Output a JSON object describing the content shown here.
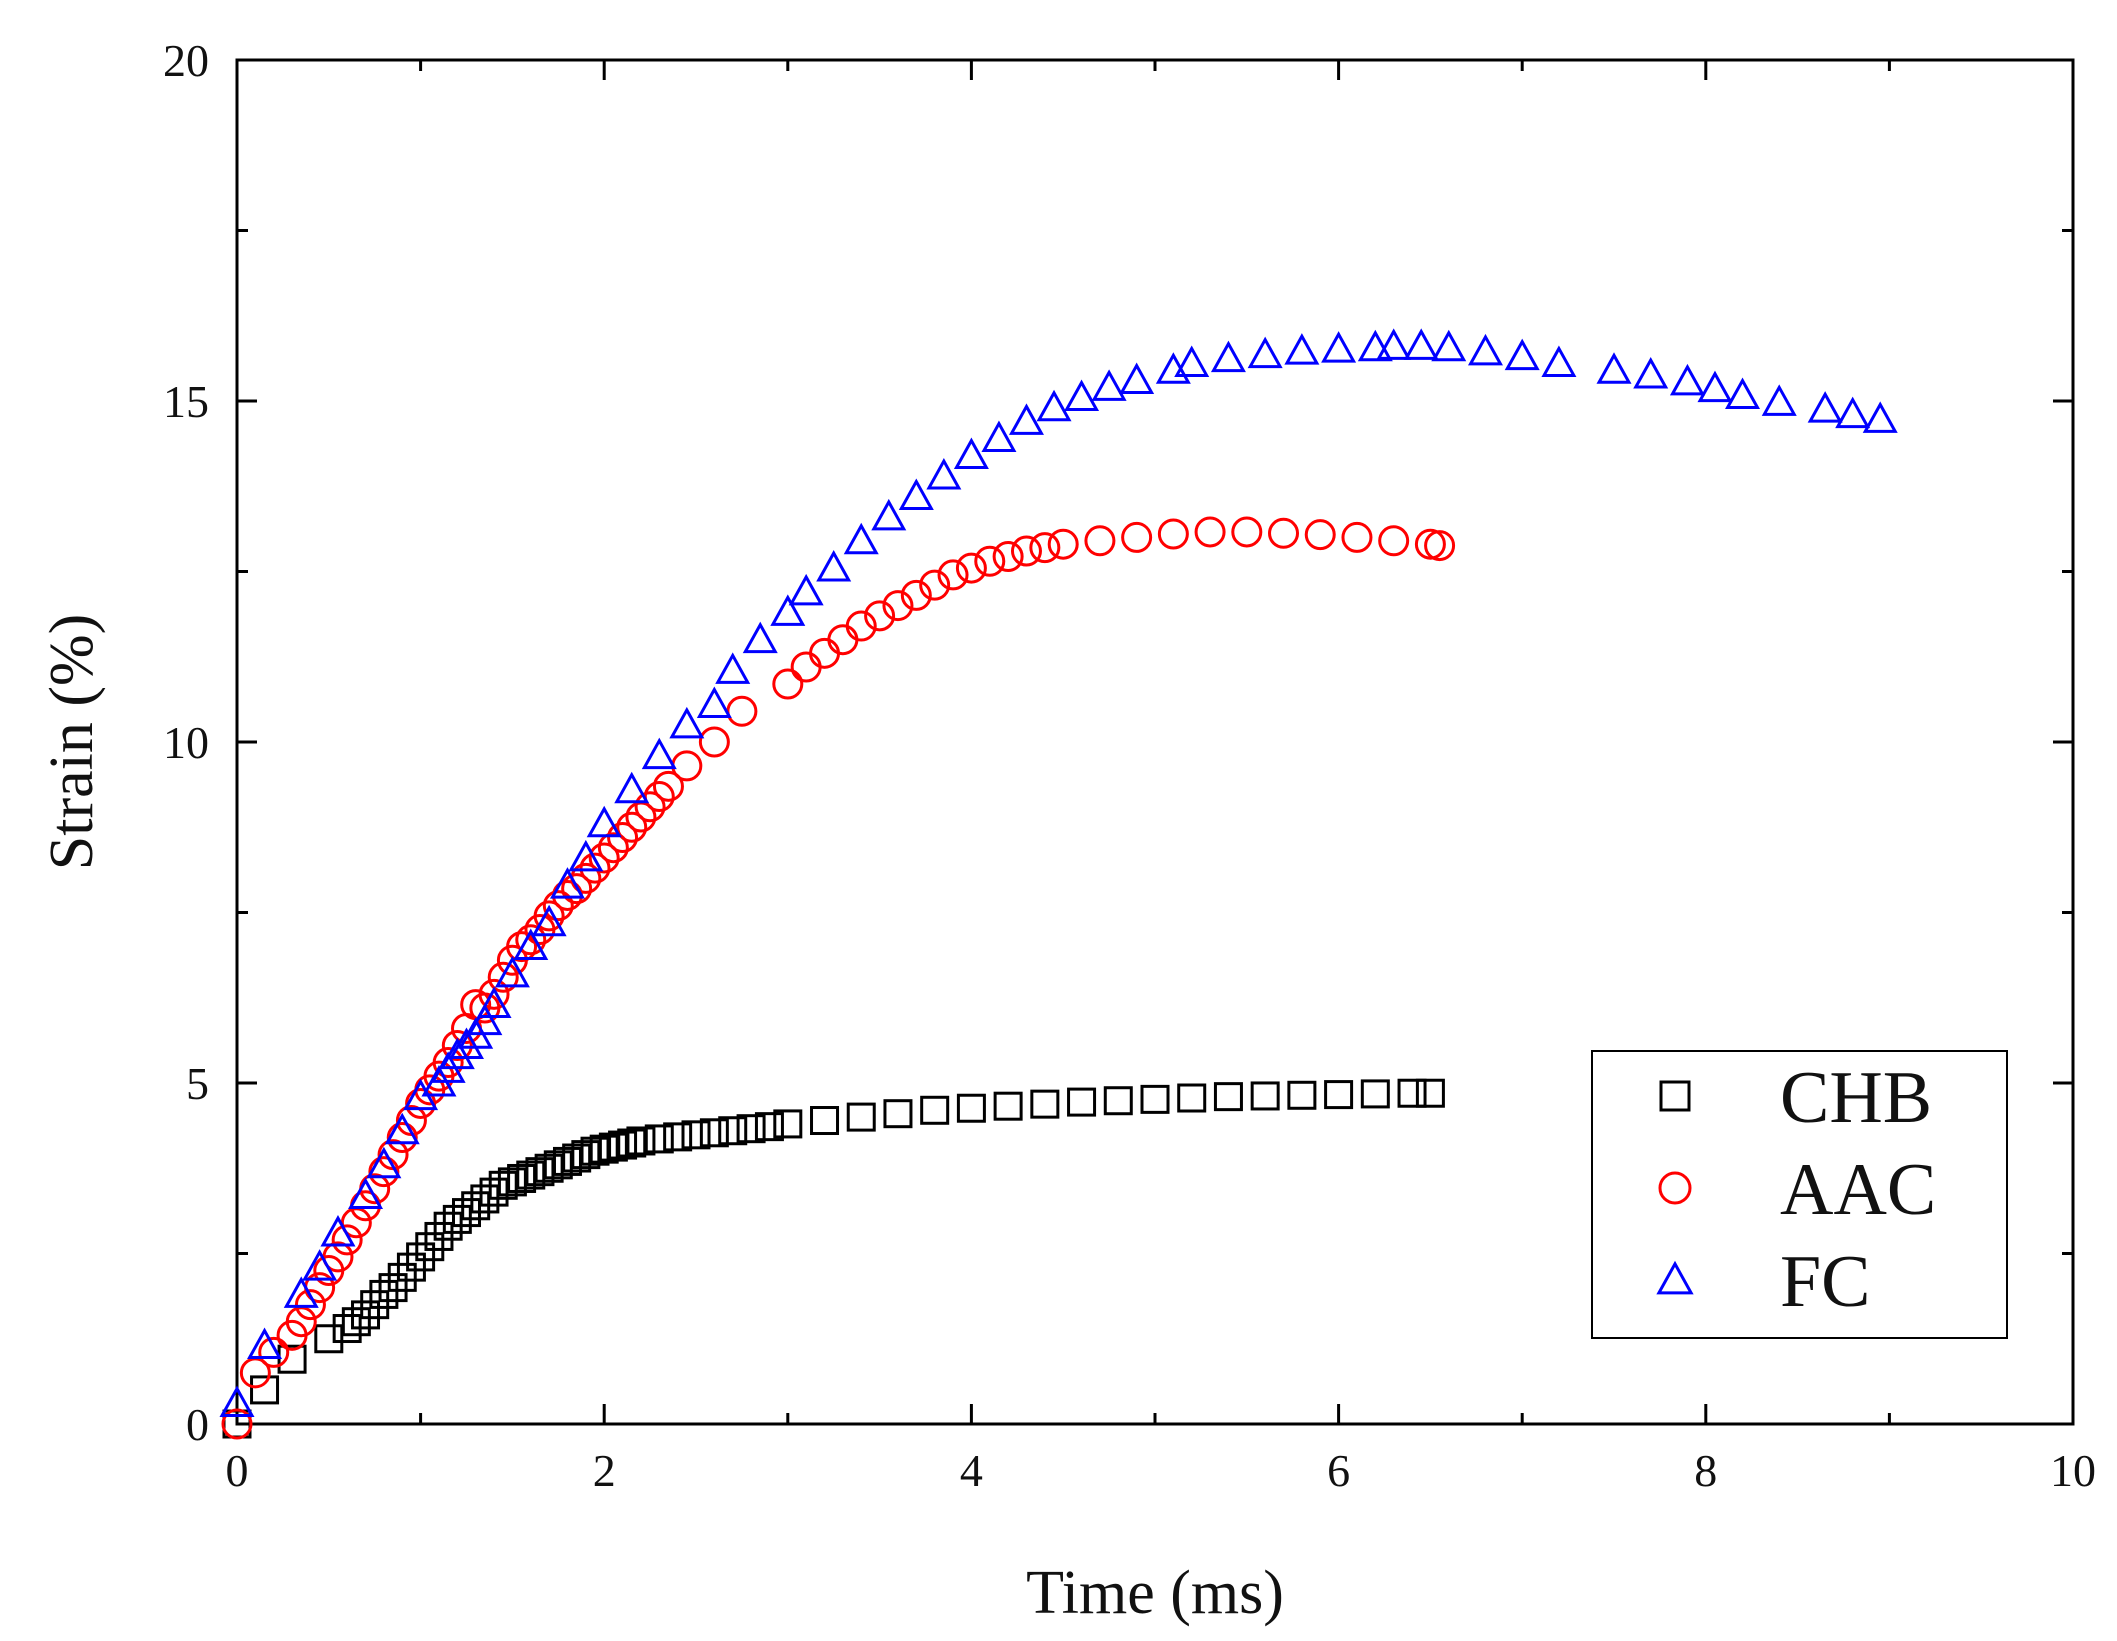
{
  "chart_data": {
    "type": "scatter",
    "title": "",
    "xlabel": "Time (ms)",
    "ylabel": "Strain (%)",
    "xlim": [
      0,
      10
    ],
    "ylim": [
      0,
      20
    ],
    "xticks": [
      0,
      2,
      4,
      6,
      8,
      10
    ],
    "xtick_labels": [
      "0",
      "2",
      "4",
      "6",
      "8",
      "10"
    ],
    "yticks": [
      0,
      5,
      10,
      15,
      20
    ],
    "ytick_labels": [
      "0",
      "5",
      "10",
      "15",
      "20"
    ],
    "grid": false,
    "legend_position": "bottom-right",
    "series": [
      {
        "name": "CHB",
        "marker": "square",
        "color": "#000000",
        "x": [
          0.0,
          0.15,
          0.3,
          0.5,
          0.6,
          0.65,
          0.7,
          0.75,
          0.8,
          0.85,
          0.9,
          0.95,
          1.0,
          1.05,
          1.1,
          1.15,
          1.2,
          1.25,
          1.3,
          1.35,
          1.4,
          1.45,
          1.5,
          1.55,
          1.6,
          1.65,
          1.7,
          1.75,
          1.8,
          1.85,
          1.9,
          1.95,
          2.0,
          2.05,
          2.1,
          2.15,
          2.2,
          2.3,
          2.4,
          2.5,
          2.6,
          2.7,
          2.8,
          2.9,
          3.0,
          3.2,
          3.4,
          3.6,
          3.8,
          4.0,
          4.2,
          4.4,
          4.6,
          4.8,
          5.0,
          5.2,
          5.4,
          5.6,
          5.8,
          6.0,
          6.2,
          6.4,
          6.5
        ],
        "y": [
          0.0,
          0.5,
          0.95,
          1.25,
          1.4,
          1.5,
          1.6,
          1.75,
          1.9,
          2.0,
          2.15,
          2.3,
          2.45,
          2.6,
          2.75,
          2.9,
          3.0,
          3.1,
          3.2,
          3.3,
          3.4,
          3.5,
          3.55,
          3.6,
          3.65,
          3.7,
          3.75,
          3.8,
          3.85,
          3.9,
          3.95,
          4.0,
          4.03,
          4.06,
          4.09,
          4.12,
          4.15,
          4.18,
          4.21,
          4.24,
          4.27,
          4.3,
          4.33,
          4.36,
          4.4,
          4.45,
          4.5,
          4.55,
          4.6,
          4.63,
          4.66,
          4.69,
          4.72,
          4.74,
          4.76,
          4.78,
          4.8,
          4.81,
          4.82,
          4.83,
          4.84,
          4.85,
          4.85
        ]
      },
      {
        "name": "AAC",
        "marker": "circle",
        "color": "#ff0000",
        "x": [
          0.0,
          0.1,
          0.2,
          0.3,
          0.35,
          0.4,
          0.45,
          0.5,
          0.55,
          0.6,
          0.65,
          0.7,
          0.75,
          0.8,
          0.85,
          0.9,
          0.95,
          1.0,
          1.05,
          1.1,
          1.15,
          1.2,
          1.25,
          1.3,
          1.35,
          1.4,
          1.45,
          1.5,
          1.55,
          1.6,
          1.65,
          1.7,
          1.75,
          1.8,
          1.85,
          1.9,
          1.95,
          2.0,
          2.05,
          2.1,
          2.15,
          2.2,
          2.25,
          2.3,
          2.35,
          2.45,
          2.6,
          2.75,
          3.0,
          3.1,
          3.2,
          3.3,
          3.4,
          3.5,
          3.6,
          3.7,
          3.8,
          3.9,
          4.0,
          4.1,
          4.2,
          4.3,
          4.4,
          4.5,
          4.7,
          4.9,
          5.1,
          5.3,
          5.5,
          5.7,
          5.9,
          6.1,
          6.3,
          6.5,
          6.55
        ],
        "y": [
          0.0,
          0.75,
          1.05,
          1.3,
          1.5,
          1.75,
          2.0,
          2.25,
          2.45,
          2.7,
          2.95,
          3.2,
          3.45,
          3.7,
          3.95,
          4.2,
          4.45,
          4.7,
          4.9,
          5.1,
          5.3,
          5.55,
          5.8,
          6.15,
          6.1,
          6.3,
          6.55,
          6.8,
          7.0,
          7.1,
          7.25,
          7.45,
          7.6,
          7.75,
          7.85,
          8.0,
          8.15,
          8.3,
          8.45,
          8.6,
          8.75,
          8.9,
          9.05,
          9.2,
          9.35,
          9.65,
          10.0,
          10.45,
          10.85,
          11.1,
          11.3,
          11.5,
          11.7,
          11.85,
          12.0,
          12.15,
          12.3,
          12.45,
          12.55,
          12.65,
          12.72,
          12.8,
          12.85,
          12.9,
          12.95,
          13.0,
          13.05,
          13.08,
          13.08,
          13.06,
          13.04,
          13.0,
          12.95,
          12.9,
          12.88
        ]
      },
      {
        "name": "FC",
        "marker": "triangle",
        "color": "#0000ff",
        "x": [
          0.0,
          0.15,
          0.35,
          0.45,
          0.55,
          0.7,
          0.8,
          0.9,
          1.0,
          1.1,
          1.15,
          1.2,
          1.25,
          1.3,
          1.35,
          1.4,
          1.5,
          1.6,
          1.7,
          1.8,
          1.9,
          2.0,
          2.15,
          2.3,
          2.45,
          2.6,
          2.7,
          2.85,
          3.0,
          3.1,
          3.25,
          3.4,
          3.55,
          3.7,
          3.85,
          4.0,
          4.15,
          4.3,
          4.45,
          4.6,
          4.75,
          4.9,
          5.1,
          5.2,
          5.4,
          5.6,
          5.8,
          6.0,
          6.2,
          6.3,
          6.45,
          6.6,
          6.8,
          7.0,
          7.2,
          7.5,
          7.7,
          7.9,
          8.05,
          8.2,
          8.4,
          8.65,
          8.8,
          8.95
        ],
        "y": [
          0.3,
          1.15,
          1.9,
          2.3,
          2.8,
          3.35,
          3.8,
          4.3,
          4.8,
          5.0,
          5.2,
          5.4,
          5.55,
          5.7,
          5.9,
          6.15,
          6.6,
          7.0,
          7.35,
          7.9,
          8.3,
          8.8,
          9.3,
          9.8,
          10.25,
          10.55,
          11.05,
          11.5,
          11.9,
          12.2,
          12.55,
          12.95,
          13.3,
          13.6,
          13.9,
          14.2,
          14.45,
          14.7,
          14.9,
          15.05,
          15.2,
          15.3,
          15.45,
          15.55,
          15.62,
          15.68,
          15.73,
          15.76,
          15.78,
          15.8,
          15.8,
          15.78,
          15.72,
          15.65,
          15.55,
          15.45,
          15.38,
          15.28,
          15.18,
          15.08,
          14.98,
          14.88,
          14.8,
          14.73
        ]
      }
    ]
  }
}
